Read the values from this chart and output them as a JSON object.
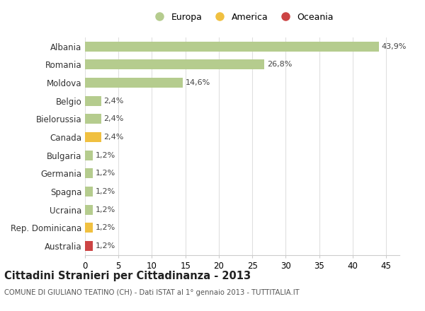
{
  "countries": [
    "Albania",
    "Romania",
    "Moldova",
    "Belgio",
    "Bielorussia",
    "Canada",
    "Bulgaria",
    "Germania",
    "Spagna",
    "Ucraina",
    "Rep. Dominicana",
    "Australia"
  ],
  "values": [
    43.9,
    26.8,
    14.6,
    2.4,
    2.4,
    2.4,
    1.2,
    1.2,
    1.2,
    1.2,
    1.2,
    1.2
  ],
  "labels": [
    "43,9%",
    "26,8%",
    "14,6%",
    "2,4%",
    "2,4%",
    "2,4%",
    "1,2%",
    "1,2%",
    "1,2%",
    "1,2%",
    "1,2%",
    "1,2%"
  ],
  "continents": [
    "Europa",
    "Europa",
    "Europa",
    "Europa",
    "Europa",
    "America",
    "Europa",
    "Europa",
    "Europa",
    "Europa",
    "America",
    "Oceania"
  ],
  "colors": {
    "Europa": "#b5cc8e",
    "America": "#f0c040",
    "Oceania": "#cc4444"
  },
  "legend_colors": {
    "Europa": "#b5cc8e",
    "America": "#f0c040",
    "Oceania": "#cc4444"
  },
  "title_main": "Cittadini Stranieri per Cittadinanza - 2013",
  "title_sub": "COMUNE DI GIULIANO TEATINO (CH) - Dati ISTAT al 1° gennaio 2013 - TUTTITALIA.IT",
  "xlim": [
    0,
    47
  ],
  "xticks": [
    0,
    5,
    10,
    15,
    20,
    25,
    30,
    35,
    40,
    45
  ],
  "background_color": "#ffffff",
  "grid_color": "#e0e0e0",
  "bar_height": 0.55
}
